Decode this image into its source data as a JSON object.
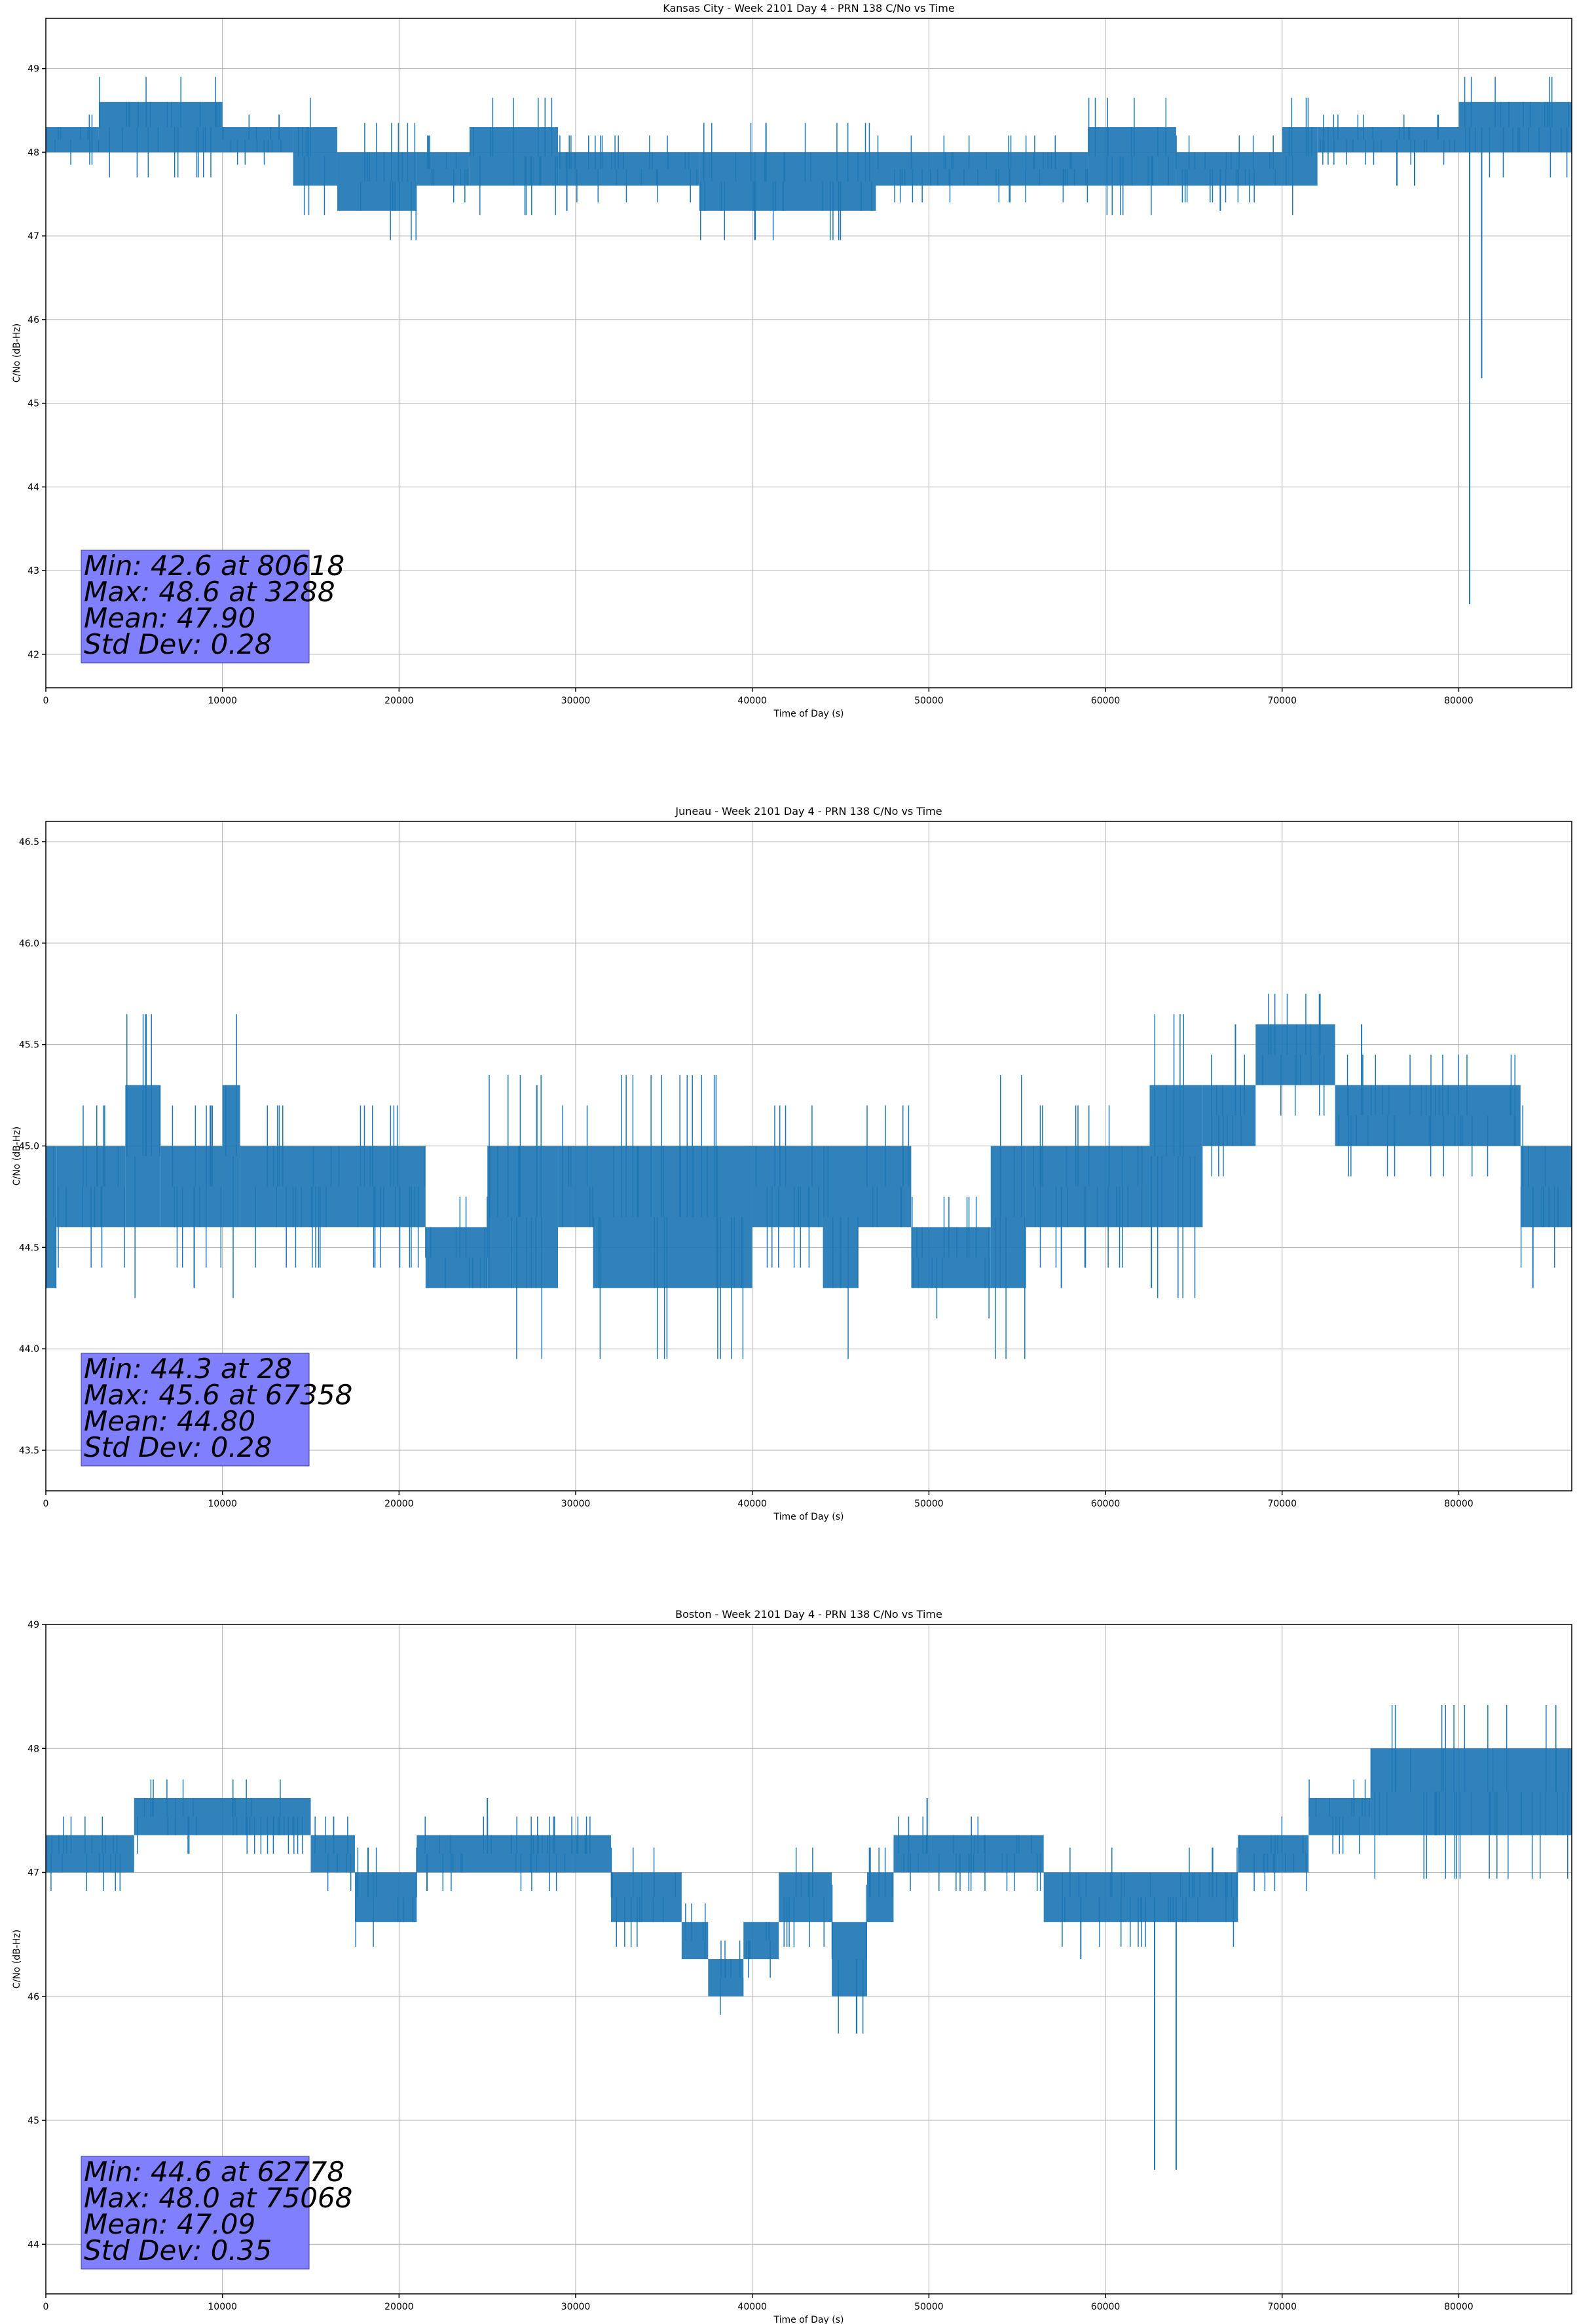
{
  "chart_data": [
    {
      "type": "line",
      "title": "Kansas City - Week 2101 Day 4 - PRN 138 C/No vs Time",
      "xlabel": "Time of Day (s)",
      "ylabel": "C/No (dB-Hz)",
      "xlim": [
        0,
        86400
      ],
      "ylim": [
        41.6,
        49.6
      ],
      "xticks": [
        0,
        10000,
        20000,
        30000,
        40000,
        50000,
        60000,
        70000,
        80000
      ],
      "yticks": [
        42,
        43,
        44,
        45,
        46,
        47,
        48,
        49
      ],
      "ytick_labels": [
        "42",
        "43",
        "44",
        "45",
        "46",
        "47",
        "48",
        "49"
      ],
      "grid": true,
      "color": "#1f77b4",
      "stats_lines": [
        "Min: 42.6 at 80618",
        "Max: 48.6 at 3288",
        "Mean: 47.90",
        "Std Dev: 0.28"
      ],
      "segments": [
        {
          "x": [
            0,
            3000
          ],
          "lo": 48.0,
          "hi": 48.3
        },
        {
          "x": [
            3000,
            10000
          ],
          "lo": 48.0,
          "hi": 48.6
        },
        {
          "x": [
            10000,
            14000
          ],
          "lo": 48.0,
          "hi": 48.3
        },
        {
          "x": [
            14000,
            16500
          ],
          "lo": 47.6,
          "hi": 48.3
        },
        {
          "x": [
            16500,
            21000
          ],
          "lo": 47.3,
          "hi": 48.0
        },
        {
          "x": [
            21000,
            24000
          ],
          "lo": 47.6,
          "hi": 48.0
        },
        {
          "x": [
            24000,
            29000
          ],
          "lo": 47.6,
          "hi": 48.3
        },
        {
          "x": [
            29000,
            37000
          ],
          "lo": 47.6,
          "hi": 48.0
        },
        {
          "x": [
            37000,
            47000
          ],
          "lo": 47.3,
          "hi": 48.0
        },
        {
          "x": [
            47000,
            59000
          ],
          "lo": 47.6,
          "hi": 48.0
        },
        {
          "x": [
            59000,
            64000
          ],
          "lo": 47.6,
          "hi": 48.3
        },
        {
          "x": [
            64000,
            70000
          ],
          "lo": 47.6,
          "hi": 48.0
        },
        {
          "x": [
            70000,
            72000
          ],
          "lo": 47.6,
          "hi": 48.3
        },
        {
          "x": [
            72000,
            80000
          ],
          "lo": 48.0,
          "hi": 48.3
        },
        {
          "x": [
            80000,
            86400
          ],
          "lo": 48.0,
          "hi": 48.6
        }
      ],
      "spikes": [
        {
          "x": 80618,
          "y": 42.6
        },
        {
          "x": 81300,
          "y": 45.3
        },
        {
          "x": 29500,
          "y": 47.3
        },
        {
          "x": 66500,
          "y": 47.3
        },
        {
          "x": 77500,
          "y": 47.6
        },
        {
          "x": 76500,
          "y": 47.6
        }
      ]
    },
    {
      "type": "line",
      "title": "Juneau - Week 2101 Day 4 - PRN 138 C/No vs Time",
      "xlabel": "Time of Day (s)",
      "ylabel": "C/No (dB-Hz)",
      "xlim": [
        0,
        86400
      ],
      "ylim": [
        43.3,
        46.6
      ],
      "xticks": [
        0,
        10000,
        20000,
        30000,
        40000,
        50000,
        60000,
        70000,
        80000
      ],
      "yticks": [
        43.5,
        44.0,
        44.5,
        45.0,
        45.5,
        46.0,
        46.5
      ],
      "ytick_labels": [
        "43.5",
        "44.0",
        "44.5",
        "45.0",
        "45.5",
        "46.0",
        "46.5"
      ],
      "grid": true,
      "color": "#1f77b4",
      "stats_lines": [
        "Min: 44.3 at 28",
        "Max: 45.6 at 67358",
        "Mean: 44.80",
        "Std Dev: 0.28"
      ],
      "segments": [
        {
          "x": [
            0,
            600
          ],
          "lo": 44.3,
          "hi": 45.0
        },
        {
          "x": [
            600,
            4500
          ],
          "lo": 44.6,
          "hi": 45.0
        },
        {
          "x": [
            4500,
            6500
          ],
          "lo": 44.6,
          "hi": 45.3
        },
        {
          "x": [
            6500,
            10000
          ],
          "lo": 44.6,
          "hi": 45.0
        },
        {
          "x": [
            10000,
            11000
          ],
          "lo": 44.6,
          "hi": 45.3
        },
        {
          "x": [
            11000,
            21500
          ],
          "lo": 44.6,
          "hi": 45.0
        },
        {
          "x": [
            21500,
            25000
          ],
          "lo": 44.3,
          "hi": 44.6
        },
        {
          "x": [
            25000,
            29000
          ],
          "lo": 44.3,
          "hi": 45.0
        },
        {
          "x": [
            29000,
            31000
          ],
          "lo": 44.6,
          "hi": 45.0
        },
        {
          "x": [
            31000,
            40000
          ],
          "lo": 44.3,
          "hi": 45.0
        },
        {
          "x": [
            40000,
            44000
          ],
          "lo": 44.6,
          "hi": 45.0
        },
        {
          "x": [
            44000,
            46000
          ],
          "lo": 44.3,
          "hi": 45.0
        },
        {
          "x": [
            46000,
            49000
          ],
          "lo": 44.6,
          "hi": 45.0
        },
        {
          "x": [
            49000,
            53500
          ],
          "lo": 44.3,
          "hi": 44.6
        },
        {
          "x": [
            53500,
            55500
          ],
          "lo": 44.3,
          "hi": 45.0
        },
        {
          "x": [
            55500,
            62500
          ],
          "lo": 44.6,
          "hi": 45.0
        },
        {
          "x": [
            62500,
            65500
          ],
          "lo": 44.6,
          "hi": 45.3
        },
        {
          "x": [
            65500,
            68500
          ],
          "lo": 45.0,
          "hi": 45.3
        },
        {
          "x": [
            68500,
            73000
          ],
          "lo": 45.3,
          "hi": 45.6
        },
        {
          "x": [
            73000,
            83500
          ],
          "lo": 45.0,
          "hi": 45.3
        },
        {
          "x": [
            83500,
            86400
          ],
          "lo": 44.6,
          "hi": 45.0
        }
      ],
      "spikes": [
        {
          "x": 28,
          "y": 44.3
        },
        {
          "x": 8400,
          "y": 44.3
        },
        {
          "x": 27800,
          "y": 45.3
        },
        {
          "x": 38000,
          "y": 44.3
        },
        {
          "x": 57500,
          "y": 44.3
        },
        {
          "x": 62600,
          "y": 44.3
        },
        {
          "x": 67358,
          "y": 45.6
        },
        {
          "x": 74500,
          "y": 45.6
        },
        {
          "x": 84200,
          "y": 44.3
        }
      ]
    },
    {
      "type": "line",
      "title": "Boston - Week 2101 Day 4 - PRN 138 C/No vs Time",
      "xlabel": "Time of Day (s)",
      "ylabel": "C/No (dB-Hz)",
      "xlim": [
        0,
        86400
      ],
      "ylim": [
        43.6,
        49.0
      ],
      "xticks": [
        0,
        10000,
        20000,
        30000,
        40000,
        50000,
        60000,
        70000,
        80000
      ],
      "yticks": [
        44,
        45,
        46,
        47,
        48,
        49
      ],
      "ytick_labels": [
        "44",
        "45",
        "46",
        "47",
        "48",
        "49"
      ],
      "grid": true,
      "color": "#1f77b4",
      "stats_lines": [
        "Min: 44.6 at 62778",
        "Max: 48.0 at 75068",
        "Mean: 47.09",
        "Std Dev: 0.35"
      ],
      "segments": [
        {
          "x": [
            0,
            5000
          ],
          "lo": 47.0,
          "hi": 47.3
        },
        {
          "x": [
            5000,
            15000
          ],
          "lo": 47.3,
          "hi": 47.6
        },
        {
          "x": [
            15000,
            17500
          ],
          "lo": 47.0,
          "hi": 47.3
        },
        {
          "x": [
            17500,
            21000
          ],
          "lo": 46.6,
          "hi": 47.0
        },
        {
          "x": [
            21000,
            32000
          ],
          "lo": 47.0,
          "hi": 47.3
        },
        {
          "x": [
            32000,
            36000
          ],
          "lo": 46.6,
          "hi": 47.0
        },
        {
          "x": [
            36000,
            37500
          ],
          "lo": 46.3,
          "hi": 46.6
        },
        {
          "x": [
            37500,
            39500
          ],
          "lo": 46.0,
          "hi": 46.3
        },
        {
          "x": [
            39500,
            41500
          ],
          "lo": 46.3,
          "hi": 46.6
        },
        {
          "x": [
            41500,
            44500
          ],
          "lo": 46.6,
          "hi": 47.0
        },
        {
          "x": [
            44500,
            46500
          ],
          "lo": 46.0,
          "hi": 46.6
        },
        {
          "x": [
            46500,
            48000
          ],
          "lo": 46.6,
          "hi": 47.0
        },
        {
          "x": [
            48000,
            56500
          ],
          "lo": 47.0,
          "hi": 47.3
        },
        {
          "x": [
            56500,
            67500
          ],
          "lo": 46.6,
          "hi": 47.0
        },
        {
          "x": [
            67500,
            71500
          ],
          "lo": 47.0,
          "hi": 47.3
        },
        {
          "x": [
            71500,
            75000
          ],
          "lo": 47.3,
          "hi": 47.6
        },
        {
          "x": [
            75000,
            86400
          ],
          "lo": 47.3,
          "hi": 48.0
        }
      ],
      "spikes": [
        {
          "x": 62778,
          "y": 44.6
        },
        {
          "x": 64000,
          "y": 44.6
        },
        {
          "x": 49900,
          "y": 47.6
        },
        {
          "x": 58600,
          "y": 46.3
        },
        {
          "x": 25000,
          "y": 47.6
        }
      ]
    }
  ]
}
